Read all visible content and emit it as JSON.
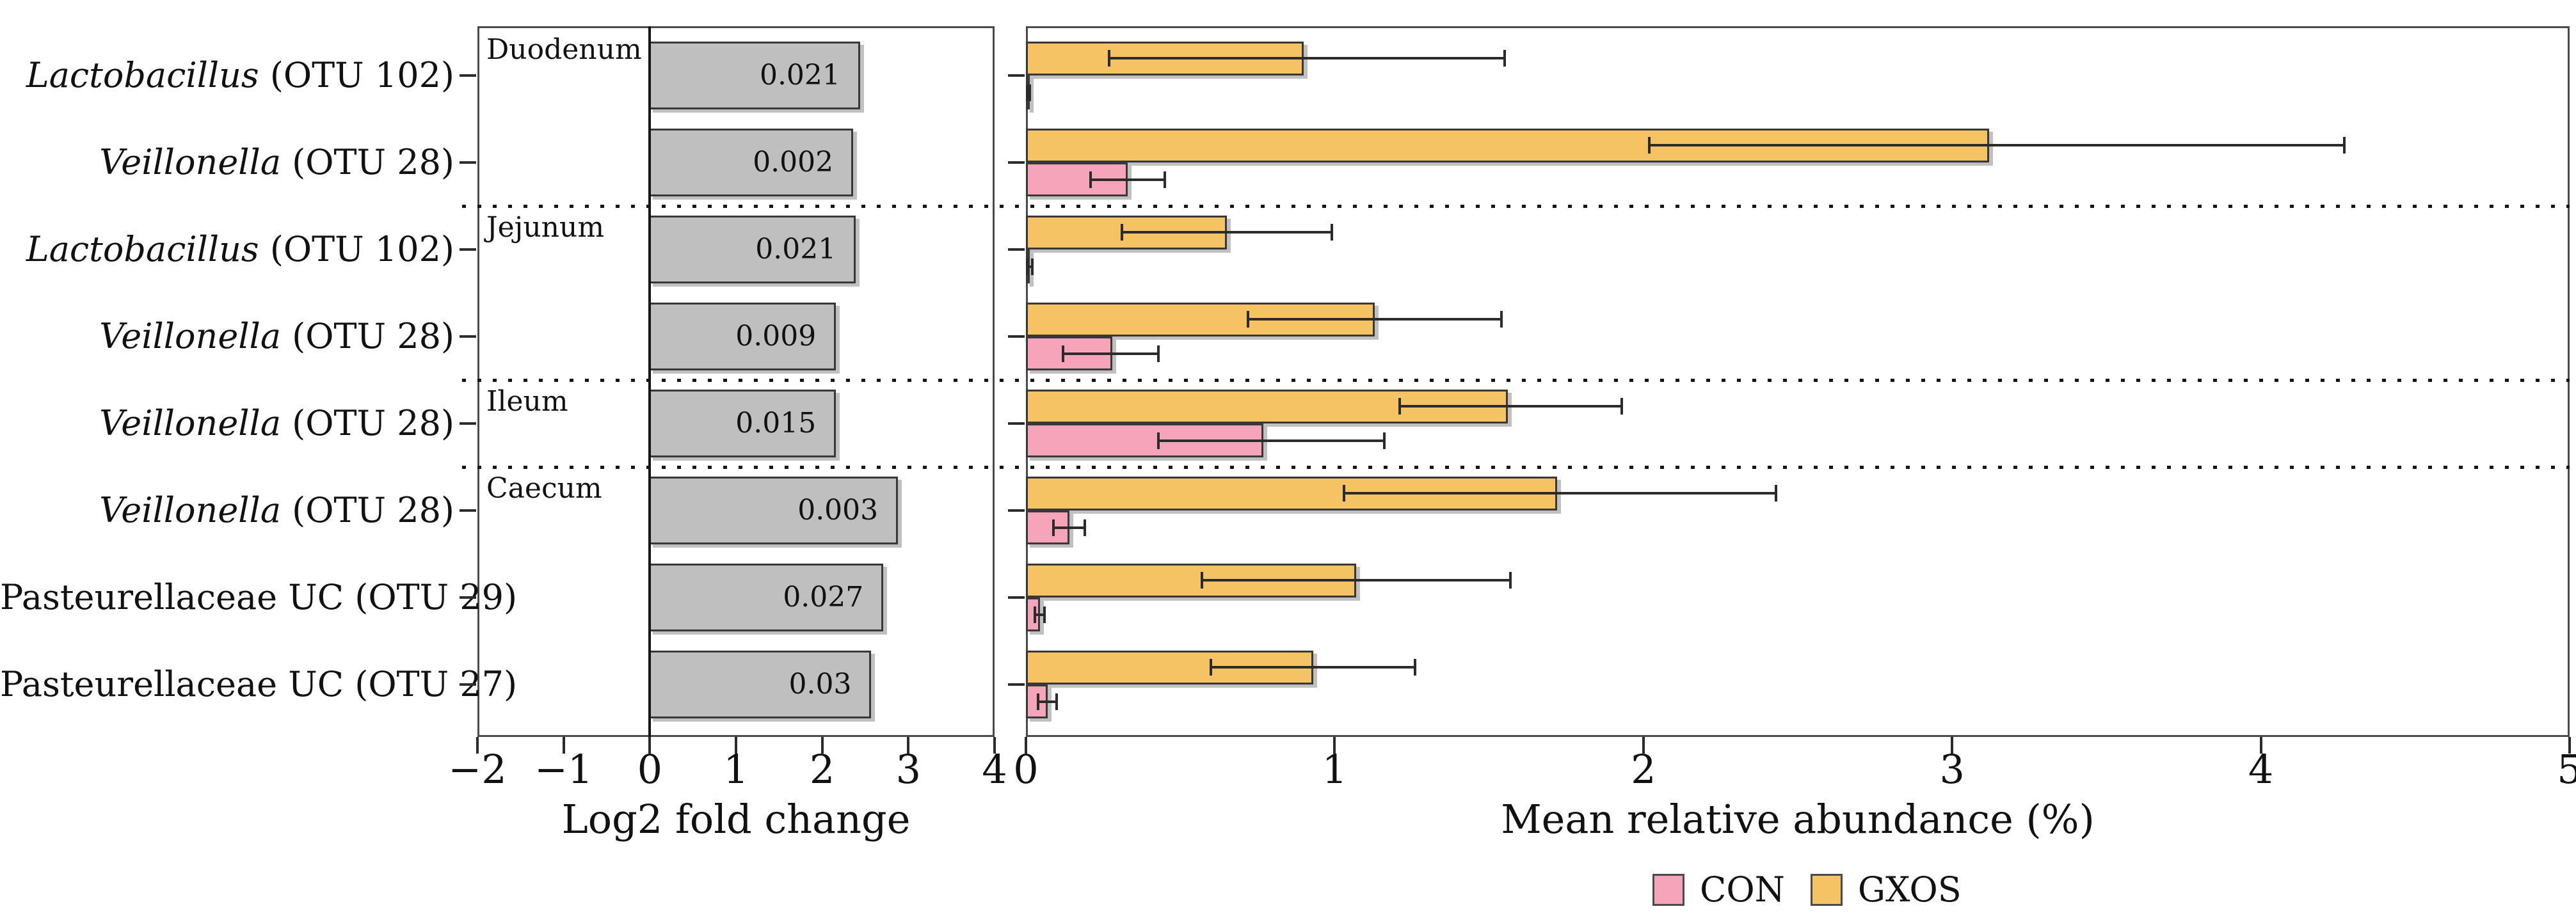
{
  "chart_data": {
    "type": "bar",
    "orientation": "horizontal",
    "left_panel": {
      "xlabel": "Log2 fold change",
      "xlim": [
        -2,
        4
      ],
      "tick_labels": [
        "−2",
        "−1",
        "0",
        "1",
        "2",
        "3",
        "4"
      ],
      "bar_color": "#bfbfbf",
      "bar_border": "#383838"
    },
    "right_panel": {
      "xlabel": "Mean relative abundance (%)",
      "xlim": [
        0,
        5
      ],
      "tick_labels": [
        "0",
        "1",
        "2",
        "3",
        "4",
        "5"
      ]
    },
    "series": [
      {
        "name": "CON",
        "color": "#f5a4ba"
      },
      {
        "name": "GXOS",
        "color": "#f6c364"
      }
    ],
    "sections": [
      "Duodenum",
      "Jejunum",
      "Ileum",
      "Caecum"
    ],
    "rows": [
      {
        "section": "Duodenum",
        "taxon": "Lactobacillus",
        "italic": true,
        "otu": "(OTU 102)",
        "log2_fc": 2.45,
        "p": "0.021",
        "gxos": {
          "mean": 0.9,
          "lo": 0.27,
          "hi": 1.55
        },
        "con": {
          "mean": 0.005,
          "lo": 0.0,
          "hi": 0.012
        }
      },
      {
        "section": "Duodenum",
        "taxon": "Veillonella",
        "italic": true,
        "otu": "(OTU 28)",
        "log2_fc": 2.37,
        "p": "0.002",
        "gxos": {
          "mean": 3.12,
          "lo": 2.02,
          "hi": 4.27
        },
        "con": {
          "mean": 0.33,
          "lo": 0.21,
          "hi": 0.45
        }
      },
      {
        "section": "Jejunum",
        "taxon": "Lactobacillus",
        "italic": true,
        "otu": "(OTU 102)",
        "log2_fc": 2.4,
        "p": "0.021",
        "gxos": {
          "mean": 0.65,
          "lo": 0.31,
          "hi": 0.99
        },
        "con": {
          "mean": 0.008,
          "lo": 0.0,
          "hi": 0.02
        }
      },
      {
        "section": "Jejunum",
        "taxon": "Veillonella",
        "italic": true,
        "otu": "(OTU 28)",
        "log2_fc": 2.17,
        "p": "0.009",
        "gxos": {
          "mean": 1.13,
          "lo": 0.72,
          "hi": 1.54
        },
        "con": {
          "mean": 0.28,
          "lo": 0.12,
          "hi": 0.43
        }
      },
      {
        "section": "Ileum",
        "taxon": "Veillonella",
        "italic": true,
        "otu": "(OTU 28)",
        "log2_fc": 2.17,
        "p": "0.015",
        "gxos": {
          "mean": 1.56,
          "lo": 1.21,
          "hi": 1.93
        },
        "con": {
          "mean": 0.77,
          "lo": 0.43,
          "hi": 1.16
        }
      },
      {
        "section": "Caecum",
        "taxon": "Veillonella",
        "italic": true,
        "otu": "(OTU 28)",
        "log2_fc": 2.89,
        "p": "0.003",
        "gxos": {
          "mean": 1.72,
          "lo": 1.03,
          "hi": 2.43
        },
        "con": {
          "mean": 0.14,
          "lo": 0.09,
          "hi": 0.19
        }
      },
      {
        "section": "Caecum",
        "taxon": "Pasteurellaceae UC",
        "italic": false,
        "otu": "(OTU 29)",
        "log2_fc": 2.72,
        "p": "0.027",
        "gxos": {
          "mean": 1.07,
          "lo": 0.57,
          "hi": 1.57
        },
        "con": {
          "mean": 0.045,
          "lo": 0.03,
          "hi": 0.06
        }
      },
      {
        "section": "Caecum",
        "taxon": "Pasteurellaceae UC",
        "italic": false,
        "otu": "(OTU 27)",
        "log2_fc": 2.58,
        "p": "0.03",
        "gxos": {
          "mean": 0.93,
          "lo": 0.6,
          "hi": 1.26
        },
        "con": {
          "mean": 0.07,
          "lo": 0.04,
          "hi": 0.1
        }
      }
    ],
    "legend_position": "bottom"
  }
}
